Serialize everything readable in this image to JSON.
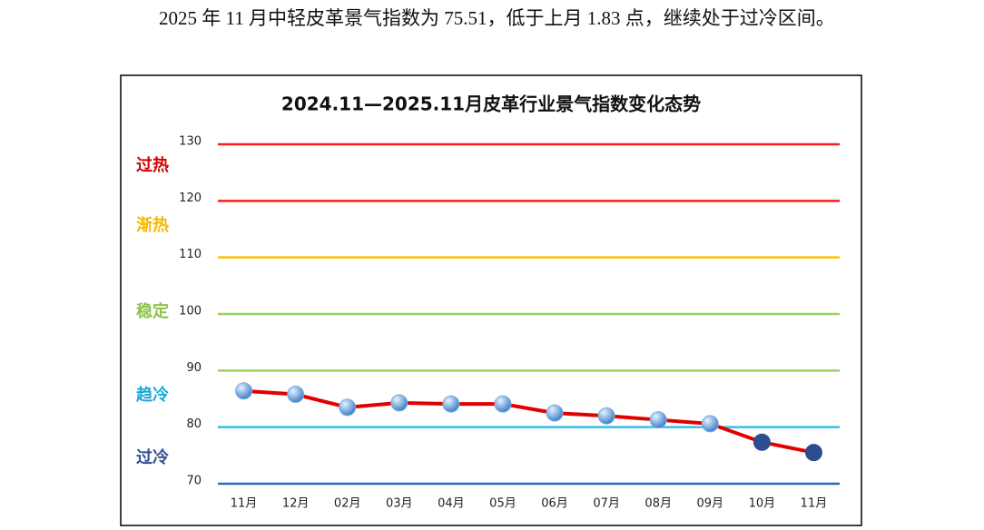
{
  "paragraph": "2025 年 11 月中轻皮革景气指数为 75.51，低于上月 1.83 点，继续处于过冷区间。",
  "chart_data": {
    "type": "line",
    "title": "2024.11—2025.11月皮革行业景气指数变化态势",
    "categories": [
      "11月",
      "12月",
      "02月",
      "03月",
      "04月",
      "05月",
      "06月",
      "07月",
      "08月",
      "09月",
      "10月",
      "11月"
    ],
    "series": [
      {
        "color": "#e00000",
        "values": [
          86.4,
          85.8,
          83.5,
          84.3,
          84.1,
          84.1,
          82.5,
          82.0,
          81.3,
          80.6,
          77.34,
          75.51
        ],
        "marker_colors": [
          "#7fb0e0",
          "#7fb0e0",
          "#7fb0e0",
          "#7fb0e0",
          "#7fb0e0",
          "#7fb0e0",
          "#7fb0e0",
          "#7fb0e0",
          "#7fb0e0",
          "#7fb0e0",
          "#2e4d8f",
          "#2e4d8f"
        ]
      }
    ],
    "ylim": [
      70,
      130
    ],
    "yticks": [
      70,
      80,
      90,
      100,
      110,
      120,
      130
    ],
    "grid": true,
    "grid_colors": [
      "#1f6fc0",
      "#33c0ea",
      "#9ed060",
      "#9ed060",
      "#ffc000",
      "#ff1a1a",
      "#ff1a1a"
    ],
    "zones": [
      {
        "label": "过热",
        "color": "#d00000"
      },
      {
        "label": "渐热",
        "color": "#f5b800"
      },
      {
        "label": "稳定",
        "color": "#8cc34a"
      },
      {
        "label": "趋冷",
        "color": "#1aa8d8"
      },
      {
        "label": "过冷",
        "color": "#2e4d8f"
      }
    ]
  }
}
